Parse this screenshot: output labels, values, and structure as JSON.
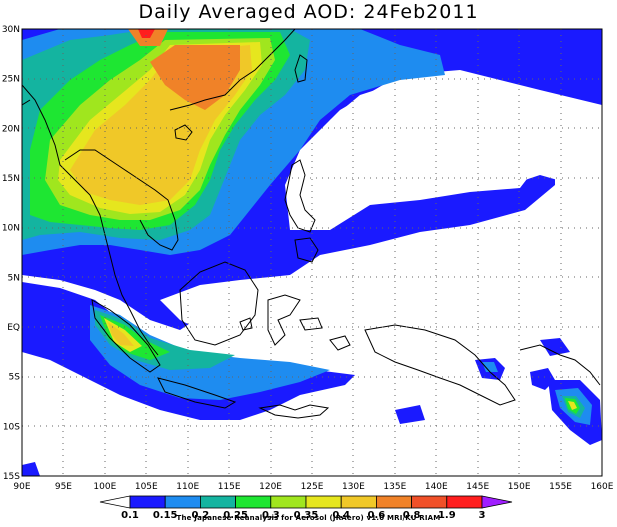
{
  "title": "Daily Averaged AOD: 24Feb2011",
  "credit": "The Japanese Reanalysis for Aerosol (JRAero) v1.0 MRI/KU RIAM",
  "lat_labels": [
    "30N",
    "25N",
    "20N",
    "15N",
    "10N",
    "5N",
    "EQ",
    "5S",
    "10S",
    "15S"
  ],
  "lon_labels": [
    "90E",
    "95E",
    "100E",
    "105E",
    "110E",
    "115E",
    "120E",
    "125E",
    "130E",
    "135E",
    "140E",
    "145E",
    "150E",
    "155E",
    "160E"
  ],
  "colorbar": {
    "labels": [
      "0.1",
      "0.15",
      "0.2",
      "0.25",
      "0.3",
      "0.35",
      "0.4",
      "0.6",
      "0.8",
      "1.9",
      "3"
    ],
    "colors": [
      "#ffffff",
      "#1a1aff",
      "#1e8cf0",
      "#14b4a0",
      "#1ee632",
      "#a0e61e",
      "#e6e61e",
      "#f0c828",
      "#f08228",
      "#f05028",
      "#ff1e1e",
      "#a01eff"
    ]
  },
  "aod_levels": {
    "blue": "#1a1aff",
    "lightblue": "#1e8cf0",
    "teal": "#14b4a0",
    "green": "#1ee632",
    "lime": "#a0e61e",
    "yellow": "#e6e61e",
    "gold": "#f0c828",
    "orange": "#f08228",
    "darkorange": "#f05028",
    "red": "#ff1e1e"
  }
}
